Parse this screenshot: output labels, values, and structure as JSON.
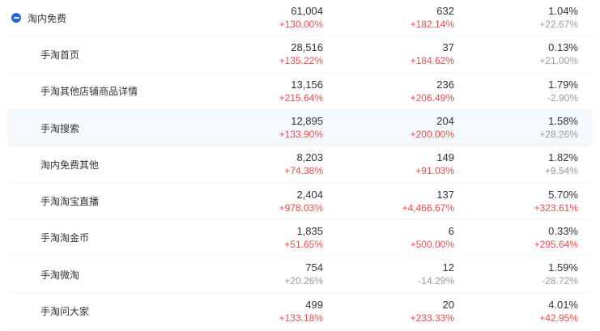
{
  "theme": {
    "red": "#f04b4b",
    "gray": "#9b9b9b",
    "blue": "#2268d9",
    "highlight_bg": "#f4f9fd",
    "divider": "#f3f3f3",
    "value_color": "#333333",
    "label_color": "#333333"
  },
  "table": {
    "rows": [
      {
        "label": "淘内免费",
        "level": 0,
        "has_toggle": true,
        "toggle_icon": "collapse-minus",
        "highlighted": false,
        "cols": [
          {
            "value": "61,004",
            "change": "+130.00%",
            "trend": "red"
          },
          {
            "value": "632",
            "change": "+182.14%",
            "trend": "red"
          },
          {
            "value": "1.04%",
            "change": "+22.67%",
            "trend": "gray"
          }
        ]
      },
      {
        "label": "手淘首页",
        "level": 1,
        "has_toggle": false,
        "highlighted": false,
        "cols": [
          {
            "value": "28,516",
            "change": "+135.22%",
            "trend": "red"
          },
          {
            "value": "37",
            "change": "+184.62%",
            "trend": "red"
          },
          {
            "value": "0.13%",
            "change": "+21.00%",
            "trend": "gray"
          }
        ]
      },
      {
        "label": "手淘其他店铺商品详情",
        "level": 1,
        "has_toggle": false,
        "highlighted": false,
        "cols": [
          {
            "value": "13,156",
            "change": "+215.64%",
            "trend": "red"
          },
          {
            "value": "236",
            "change": "+206.49%",
            "trend": "red"
          },
          {
            "value": "1.79%",
            "change": "-2.90%",
            "trend": "gray"
          }
        ]
      },
      {
        "label": "手淘搜索",
        "level": 1,
        "has_toggle": false,
        "highlighted": true,
        "cols": [
          {
            "value": "12,895",
            "change": "+133.90%",
            "trend": "red"
          },
          {
            "value": "204",
            "change": "+200.00%",
            "trend": "red"
          },
          {
            "value": "1.58%",
            "change": "+28.26%",
            "trend": "gray"
          }
        ]
      },
      {
        "label": "淘内免费其他",
        "level": 1,
        "has_toggle": false,
        "highlighted": false,
        "cols": [
          {
            "value": "8,203",
            "change": "+74.38%",
            "trend": "red"
          },
          {
            "value": "149",
            "change": "+91.03%",
            "trend": "red"
          },
          {
            "value": "1.82%",
            "change": "+9.54%",
            "trend": "gray"
          }
        ]
      },
      {
        "label": "手淘淘宝直播",
        "level": 1,
        "has_toggle": false,
        "highlighted": false,
        "cols": [
          {
            "value": "2,404",
            "change": "+978.03%",
            "trend": "red"
          },
          {
            "value": "137",
            "change": "+4,466.67%",
            "trend": "red"
          },
          {
            "value": "5.70%",
            "change": "+323.61%",
            "trend": "red"
          }
        ]
      },
      {
        "label": "手淘淘金币",
        "level": 1,
        "has_toggle": false,
        "highlighted": false,
        "cols": [
          {
            "value": "1,835",
            "change": "+51.65%",
            "trend": "red"
          },
          {
            "value": "6",
            "change": "+500.00%",
            "trend": "red"
          },
          {
            "value": "0.33%",
            "change": "+295.64%",
            "trend": "red"
          }
        ]
      },
      {
        "label": "手淘微淘",
        "level": 1,
        "has_toggle": false,
        "highlighted": false,
        "cols": [
          {
            "value": "754",
            "change": "+20.26%",
            "trend": "gray"
          },
          {
            "value": "12",
            "change": "-14.29%",
            "trend": "gray"
          },
          {
            "value": "1.59%",
            "change": "-28.72%",
            "trend": "gray"
          }
        ]
      },
      {
        "label": "手淘问大家",
        "level": 1,
        "has_toggle": false,
        "highlighted": false,
        "cols": [
          {
            "value": "499",
            "change": "+133.18%",
            "trend": "red"
          },
          {
            "value": "20",
            "change": "+233.33%",
            "trend": "red"
          },
          {
            "value": "4.01%",
            "change": "+42.95%",
            "trend": "red"
          }
        ]
      }
    ]
  }
}
